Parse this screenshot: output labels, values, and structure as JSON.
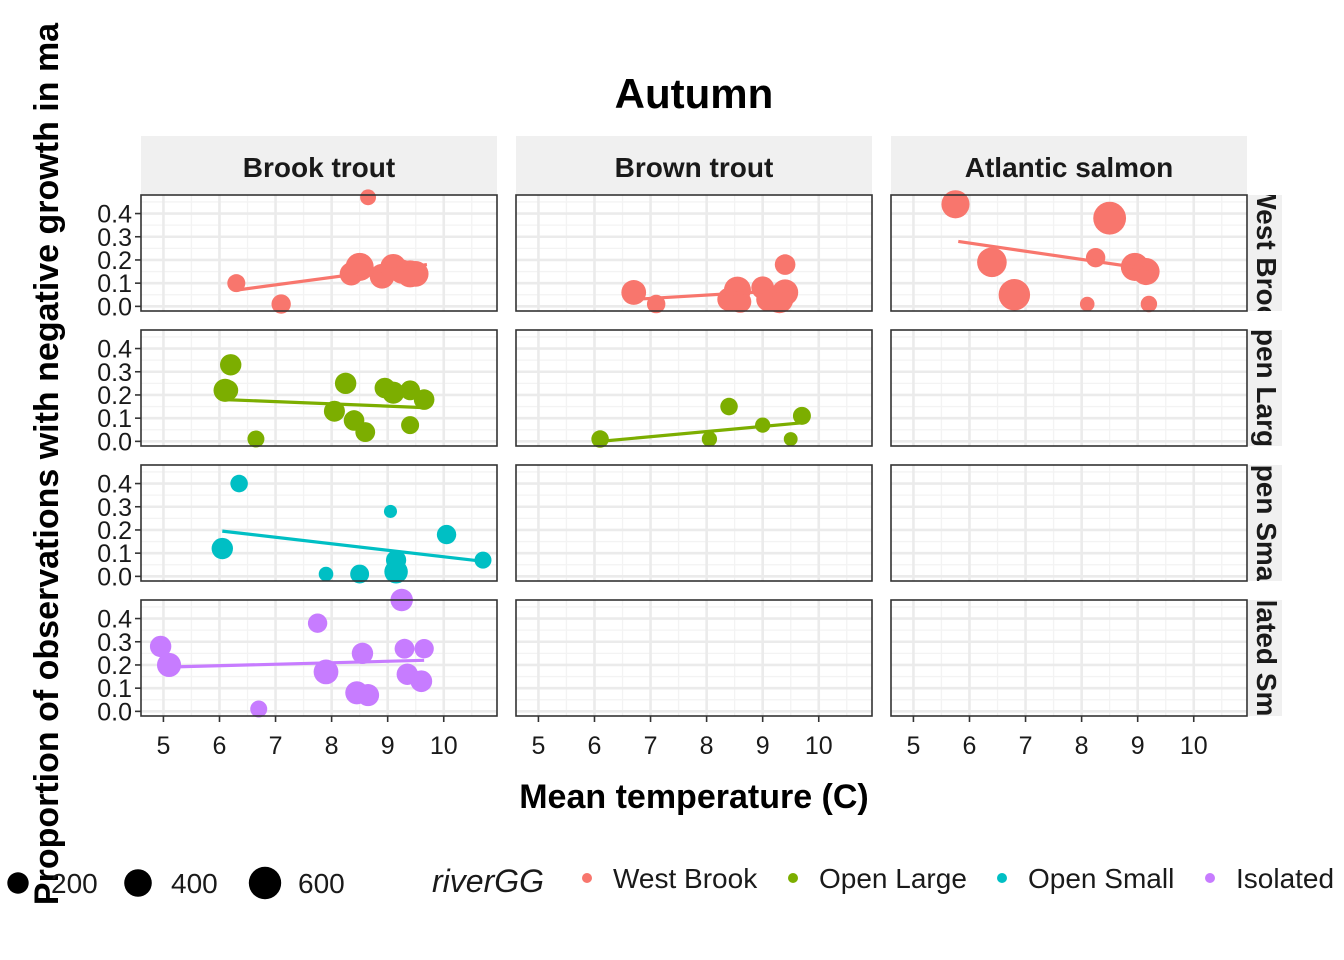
{
  "chart_data": {
    "type": "scatter",
    "title": "Autumn",
    "xlabel": "Mean temperature (C)",
    "ylabel": "Proportion of observations with negative growth in ma",
    "xlim": [
      4.6,
      10.95
    ],
    "ylim": [
      -0.02,
      0.48
    ],
    "x_ticks": [
      "5",
      "6",
      "7",
      "8",
      "9",
      "10"
    ],
    "y_ticks": [
      "0.0",
      "0.1",
      "0.2",
      "0.3",
      "0.4"
    ],
    "grid": true,
    "facet_columns": [
      "Brook trout",
      "Brown trout",
      "Atlantic salmon"
    ],
    "facet_rows": [
      "West Brook",
      "Open Large",
      "Open Small",
      "Isolated Small"
    ],
    "row_strip_labels": [
      "West Broo",
      "pen Larg",
      "pen Sma",
      "lated Sm"
    ],
    "colors": {
      "West Brook": "#F8766D",
      "Open Large": "#7CAE00",
      "Open Small": "#00BFC4",
      "Isolated Small": "#C77CFF"
    },
    "size_legend": {
      "title": "",
      "entries": [
        {
          "label": "200",
          "value": 200
        },
        {
          "label": "400",
          "value": 400
        },
        {
          "label": "600",
          "value": 600
        }
      ]
    },
    "color_legend": {
      "title": "riverGG",
      "entries": [
        "West Brook",
        "Open Large",
        "Open Small",
        "Isolated"
      ]
    },
    "panels": [
      {
        "row": 0,
        "col": 0,
        "river": "West Brook",
        "species": "Brook trout",
        "trend": [
          [
            6.3,
            0.07
          ],
          [
            9.7,
            0.18
          ]
        ],
        "points": [
          {
            "x": 6.3,
            "y": 0.1,
            "n": 120
          },
          {
            "x": 7.1,
            "y": 0.01,
            "n": 150
          },
          {
            "x": 8.35,
            "y": 0.14,
            "n": 250
          },
          {
            "x": 8.5,
            "y": 0.17,
            "n": 420
          },
          {
            "x": 8.65,
            "y": 0.47,
            "n": 80
          },
          {
            "x": 8.9,
            "y": 0.13,
            "n": 300
          },
          {
            "x": 9.1,
            "y": 0.17,
            "n": 340
          },
          {
            "x": 9.25,
            "y": 0.15,
            "n": 280
          },
          {
            "x": 9.4,
            "y": 0.14,
            "n": 380
          },
          {
            "x": 9.5,
            "y": 0.14,
            "n": 330
          }
        ]
      },
      {
        "row": 0,
        "col": 1,
        "river": "West Brook",
        "species": "Brown trout",
        "trend": [
          [
            6.7,
            0.03
          ],
          [
            9.5,
            0.07
          ]
        ],
        "points": [
          {
            "x": 6.7,
            "y": 0.06,
            "n": 300
          },
          {
            "x": 7.1,
            "y": 0.01,
            "n": 130
          },
          {
            "x": 8.4,
            "y": 0.03,
            "n": 260
          },
          {
            "x": 8.55,
            "y": 0.07,
            "n": 380
          },
          {
            "x": 8.6,
            "y": 0.02,
            "n": 220
          },
          {
            "x": 9.0,
            "y": 0.08,
            "n": 240
          },
          {
            "x": 9.1,
            "y": 0.03,
            "n": 280
          },
          {
            "x": 9.3,
            "y": 0.03,
            "n": 400
          },
          {
            "x": 9.4,
            "y": 0.06,
            "n": 350
          },
          {
            "x": 9.4,
            "y": 0.18,
            "n": 180
          }
        ]
      },
      {
        "row": 0,
        "col": 2,
        "river": "West Brook",
        "species": "Atlantic salmon",
        "trend": [
          [
            5.8,
            0.28
          ],
          [
            9.2,
            0.16
          ]
        ],
        "points": [
          {
            "x": 5.75,
            "y": 0.44,
            "n": 420
          },
          {
            "x": 6.4,
            "y": 0.19,
            "n": 480
          },
          {
            "x": 6.8,
            "y": 0.05,
            "n": 560
          },
          {
            "x": 8.1,
            "y": 0.01,
            "n": 60
          },
          {
            "x": 8.25,
            "y": 0.21,
            "n": 150
          },
          {
            "x": 8.5,
            "y": 0.38,
            "n": 620
          },
          {
            "x": 8.95,
            "y": 0.17,
            "n": 420
          },
          {
            "x": 9.15,
            "y": 0.15,
            "n": 380
          },
          {
            "x": 9.2,
            "y": 0.01,
            "n": 90
          }
        ]
      },
      {
        "row": 1,
        "col": 0,
        "river": "Open Large",
        "species": "Brook trout",
        "trend": [
          [
            6.1,
            0.18
          ],
          [
            9.7,
            0.145
          ]
        ],
        "points": [
          {
            "x": 6.1,
            "y": 0.22,
            "n": 250
          },
          {
            "x": 6.15,
            "y": 0.22,
            "n": 180
          },
          {
            "x": 6.2,
            "y": 0.33,
            "n": 200
          },
          {
            "x": 6.65,
            "y": 0.01,
            "n": 100
          },
          {
            "x": 8.05,
            "y": 0.13,
            "n": 190
          },
          {
            "x": 8.25,
            "y": 0.25,
            "n": 200
          },
          {
            "x": 8.4,
            "y": 0.09,
            "n": 180
          },
          {
            "x": 8.6,
            "y": 0.04,
            "n": 160
          },
          {
            "x": 8.95,
            "y": 0.23,
            "n": 180
          },
          {
            "x": 9.1,
            "y": 0.21,
            "n": 220
          },
          {
            "x": 9.4,
            "y": 0.22,
            "n": 160
          },
          {
            "x": 9.4,
            "y": 0.07,
            "n": 120
          },
          {
            "x": 9.65,
            "y": 0.18,
            "n": 180
          }
        ]
      },
      {
        "row": 1,
        "col": 1,
        "river": "Open Large",
        "species": "Brown trout",
        "trend": [
          [
            6.1,
            0.0
          ],
          [
            9.7,
            0.08
          ]
        ],
        "points": [
          {
            "x": 6.1,
            "y": 0.01,
            "n": 110
          },
          {
            "x": 8.05,
            "y": 0.01,
            "n": 70
          },
          {
            "x": 8.4,
            "y": 0.15,
            "n": 110
          },
          {
            "x": 9.0,
            "y": 0.07,
            "n": 70
          },
          {
            "x": 9.5,
            "y": 0.01,
            "n": 50
          },
          {
            "x": 9.7,
            "y": 0.11,
            "n": 120
          }
        ]
      },
      {
        "row": 1,
        "col": 2,
        "river": "Open Large",
        "species": "Atlantic salmon",
        "trend": [],
        "points": []
      },
      {
        "row": 2,
        "col": 0,
        "river": "Open Small",
        "species": "Brook trout",
        "trend": [
          [
            6.05,
            0.195
          ],
          [
            10.7,
            0.065
          ]
        ],
        "points": [
          {
            "x": 6.05,
            "y": 0.12,
            "n": 200
          },
          {
            "x": 6.35,
            "y": 0.4,
            "n": 110
          },
          {
            "x": 7.9,
            "y": 0.01,
            "n": 60
          },
          {
            "x": 8.5,
            "y": 0.01,
            "n": 140
          },
          {
            "x": 9.05,
            "y": 0.28,
            "n": 40
          },
          {
            "x": 9.15,
            "y": 0.02,
            "n": 260
          },
          {
            "x": 9.15,
            "y": 0.07,
            "n": 170
          },
          {
            "x": 10.05,
            "y": 0.18,
            "n": 150
          },
          {
            "x": 10.7,
            "y": 0.07,
            "n": 100
          }
        ]
      },
      {
        "row": 2,
        "col": 1,
        "river": "Open Small",
        "species": "Brown trout",
        "trend": [],
        "points": []
      },
      {
        "row": 2,
        "col": 2,
        "river": "Open Small",
        "species": "Atlantic salmon",
        "trend": [],
        "points": []
      },
      {
        "row": 3,
        "col": 0,
        "river": "Isolated Small",
        "species": "Brook trout",
        "trend": [
          [
            4.95,
            0.19
          ],
          [
            9.65,
            0.22
          ]
        ],
        "points": [
          {
            "x": 4.95,
            "y": 0.28,
            "n": 200
          },
          {
            "x": 5.1,
            "y": 0.2,
            "n": 280
          },
          {
            "x": 6.7,
            "y": 0.01,
            "n": 100
          },
          {
            "x": 7.75,
            "y": 0.38,
            "n": 150
          },
          {
            "x": 7.9,
            "y": 0.17,
            "n": 300
          },
          {
            "x": 8.45,
            "y": 0.08,
            "n": 250
          },
          {
            "x": 8.55,
            "y": 0.25,
            "n": 200
          },
          {
            "x": 8.65,
            "y": 0.07,
            "n": 220
          },
          {
            "x": 9.25,
            "y": 0.48,
            "n": 230
          },
          {
            "x": 9.3,
            "y": 0.27,
            "n": 160
          },
          {
            "x": 9.35,
            "y": 0.16,
            "n": 200
          },
          {
            "x": 9.6,
            "y": 0.13,
            "n": 210
          },
          {
            "x": 9.65,
            "y": 0.27,
            "n": 150
          }
        ]
      },
      {
        "row": 3,
        "col": 1,
        "river": "Isolated Small",
        "species": "Brown trout",
        "trend": [],
        "points": []
      },
      {
        "row": 3,
        "col": 2,
        "river": "Isolated Small",
        "species": "Atlantic salmon",
        "trend": [],
        "points": []
      }
    ]
  }
}
